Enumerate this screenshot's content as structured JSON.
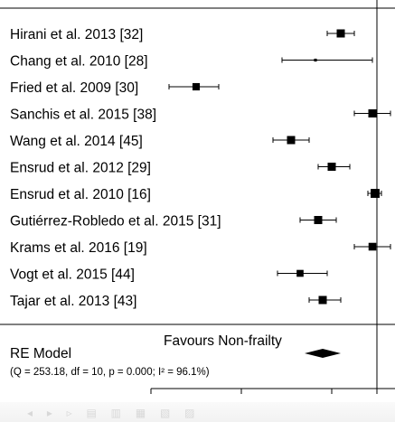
{
  "chart_data": {
    "type": "forest",
    "xlim": [
      -2.9,
      0.6
    ],
    "x_ticks": [
      "-2.5",
      "-1.5",
      "-0.5",
      "0"
    ],
    "studies": [
      {
        "label": "Hirani et al. 2013 [32]",
        "est": -0.4,
        "lo": -0.55,
        "hi": -0.25,
        "weight": 1.0
      },
      {
        "label": "Chang et al. 2010 [28]",
        "est": -0.68,
        "lo": -1.05,
        "hi": -0.05,
        "weight": 0.35
      },
      {
        "label": "Fried et al. 2009 [30]",
        "est": -2.0,
        "lo": -2.3,
        "hi": -1.75,
        "weight": 0.9
      },
      {
        "label": "Sanchis et al. 2015 [38]",
        "est": -0.05,
        "lo": -0.25,
        "hi": 0.15,
        "weight": 1.0
      },
      {
        "label": "Wang et al. 2014 [45]",
        "est": -0.95,
        "lo": -1.15,
        "hi": -0.75,
        "weight": 1.0
      },
      {
        "label": "Ensrud et al. 2012 [29]",
        "est": -0.5,
        "lo": -0.65,
        "hi": -0.3,
        "weight": 1.0
      },
      {
        "label": "Ensrud et al. 2010 [16]",
        "est": -0.02,
        "lo": -0.1,
        "hi": 0.05,
        "weight": 1.1
      },
      {
        "label": "Gutiérrez-Robledo et al. 2015 [31]",
        "est": -0.65,
        "lo": -0.85,
        "hi": -0.45,
        "weight": 1.0
      },
      {
        "label": "Krams et al. 2016 [19]",
        "est": -0.05,
        "lo": -0.25,
        "hi": 0.15,
        "weight": 0.95
      },
      {
        "label": "Vogt et al. 2015 [44]",
        "est": -0.85,
        "lo": -1.1,
        "hi": -0.55,
        "weight": 0.85
      },
      {
        "label": "Tajar et al. 2013 [43]",
        "est": -0.6,
        "lo": -0.75,
        "hi": -0.4,
        "weight": 1.0
      }
    ],
    "summary": {
      "label": "RE Model",
      "stats": "(Q = 253.18, df = 10, p = 0.000; I² = 96.1%)",
      "est": -0.6,
      "lo": -0.8,
      "hi": -0.4
    },
    "annotation": "Favours Non-frailty"
  }
}
